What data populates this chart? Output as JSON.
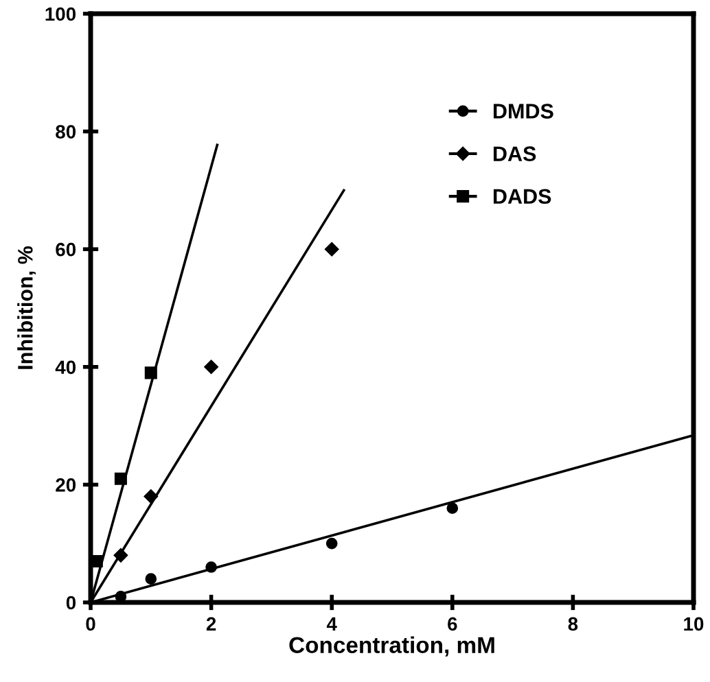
{
  "chart_data": {
    "type": "scatter",
    "xlabel": "Concentration, mM",
    "ylabel": "Inhibition, %",
    "xlim": [
      0,
      10
    ],
    "ylim": [
      0,
      100
    ],
    "xticks": [
      0,
      2,
      4,
      6,
      8,
      10
    ],
    "yticks": [
      0,
      20,
      40,
      60,
      80,
      100
    ],
    "grid": false,
    "legend": "top right",
    "series": [
      {
        "name": "DMDS",
        "color": "#000000",
        "marker": "circle",
        "x": [
          0.5,
          1,
          2,
          4,
          6
        ],
        "values": [
          1,
          4,
          6,
          10,
          16
        ]
      },
      {
        "name": "DAS",
        "color": "#000000",
        "marker": "diamond",
        "x": [
          0.5,
          1,
          2,
          4
        ],
        "values": [
          8,
          18,
          40,
          60
        ]
      },
      {
        "name": "DADS",
        "color": "#000000",
        "marker": "square",
        "x": [
          0.1,
          0.5,
          1
        ],
        "values": [
          7,
          21,
          39
        ]
      },
      {
        "type": "line",
        "color": "#000000",
        "line_style": "solid",
        "x": [
          0,
          10
        ],
        "values": [
          0,
          28.4
        ]
      },
      {
        "type": "line",
        "color": "#000000",
        "line_style": "solid",
        "x": [
          0,
          4.2
        ],
        "values": [
          0,
          70
        ]
      },
      {
        "type": "line",
        "color": "#000000",
        "line_style": "solid",
        "x": [
          0,
          2.1
        ],
        "values": [
          0,
          77.7
        ]
      }
    ]
  }
}
